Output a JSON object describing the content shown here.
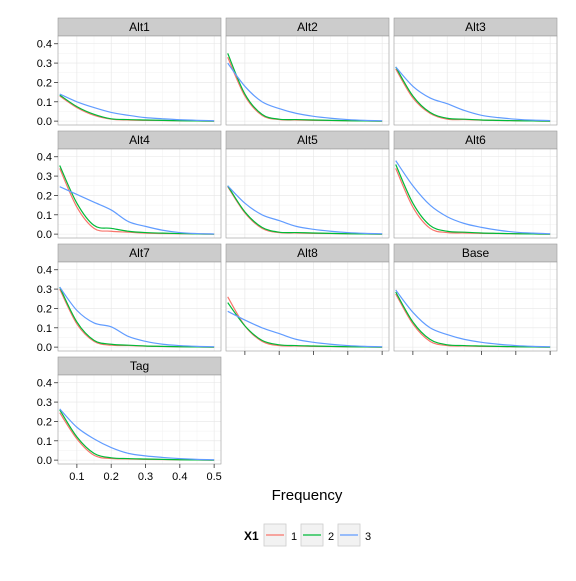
{
  "chart_data": {
    "type": "line",
    "xlabel": "Frequency",
    "ylabel": "",
    "x_ticks": [
      0.1,
      0.2,
      0.3,
      0.4,
      0.5
    ],
    "y_ticks": [
      0.0,
      0.1,
      0.2,
      0.3,
      0.4
    ],
    "x_tick_labels": [
      "0.1",
      "0.2",
      "0.3",
      "0.4",
      "0.5"
    ],
    "y_tick_labels": [
      "0.0",
      "0.1",
      "0.2",
      "0.3",
      "0.4"
    ],
    "xlim": [
      0.045,
      0.52
    ],
    "ylim": [
      -0.02,
      0.44
    ],
    "grid": true,
    "legend": {
      "title": "X1",
      "position": "bottom",
      "entries": [
        {
          "label": "1",
          "color": "#F8766D"
        },
        {
          "label": "2",
          "color": "#00BA38"
        },
        {
          "label": "3",
          "color": "#619CFF"
        }
      ]
    },
    "x": [
      0.05,
      0.1,
      0.15,
      0.2,
      0.25,
      0.3,
      0.35,
      0.4,
      0.45,
      0.5
    ],
    "panels": [
      {
        "title": "Alt1",
        "series": [
          {
            "name": "1",
            "values": [
              0.13,
              0.07,
              0.03,
              0.01,
              0.006,
              0.004,
              0.003,
              0.002,
              0.001,
              0.0
            ]
          },
          {
            "name": "2",
            "values": [
              0.135,
              0.075,
              0.035,
              0.012,
              0.008,
              0.006,
              0.004,
              0.002,
              0.001,
              0.0
            ]
          },
          {
            "name": "3",
            "values": [
              0.14,
              0.1,
              0.07,
              0.045,
              0.03,
              0.018,
              0.012,
              0.007,
              0.004,
              0.002
            ]
          }
        ]
      },
      {
        "title": "Alt2",
        "series": [
          {
            "name": "1",
            "values": [
              0.33,
              0.13,
              0.03,
              0.008,
              0.006,
              0.004,
              0.003,
              0.002,
              0.001,
              0.0
            ]
          },
          {
            "name": "2",
            "values": [
              0.35,
              0.14,
              0.035,
              0.01,
              0.008,
              0.006,
              0.004,
              0.002,
              0.001,
              0.0
            ]
          },
          {
            "name": "3",
            "values": [
              0.3,
              0.18,
              0.1,
              0.065,
              0.04,
              0.025,
              0.015,
              0.008,
              0.004,
              0.002
            ]
          }
        ]
      },
      {
        "title": "Alt3",
        "series": [
          {
            "name": "1",
            "values": [
              0.27,
              0.12,
              0.04,
              0.01,
              0.008,
              0.005,
              0.003,
              0.002,
              0.001,
              0.0
            ]
          },
          {
            "name": "2",
            "values": [
              0.28,
              0.13,
              0.045,
              0.015,
              0.01,
              0.006,
              0.004,
              0.002,
              0.001,
              0.0
            ]
          },
          {
            "name": "3",
            "values": [
              0.28,
              0.18,
              0.12,
              0.09,
              0.055,
              0.03,
              0.018,
              0.01,
              0.005,
              0.003
            ]
          }
        ]
      },
      {
        "title": "Alt4",
        "series": [
          {
            "name": "1",
            "values": [
              0.34,
              0.14,
              0.03,
              0.015,
              0.01,
              0.005,
              0.003,
              0.002,
              0.001,
              0.0
            ]
          },
          {
            "name": "2",
            "values": [
              0.355,
              0.16,
              0.045,
              0.03,
              0.015,
              0.008,
              0.005,
              0.003,
              0.001,
              0.0
            ]
          },
          {
            "name": "3",
            "values": [
              0.245,
              0.205,
              0.165,
              0.125,
              0.065,
              0.04,
              0.02,
              0.008,
              0.003,
              0.001
            ]
          }
        ]
      },
      {
        "title": "Alt5",
        "series": [
          {
            "name": "1",
            "values": [
              0.245,
              0.11,
              0.03,
              0.008,
              0.006,
              0.004,
              0.003,
              0.002,
              0.001,
              0.0
            ]
          },
          {
            "name": "2",
            "values": [
              0.25,
              0.115,
              0.035,
              0.01,
              0.008,
              0.006,
              0.004,
              0.002,
              0.001,
              0.0
            ]
          },
          {
            "name": "3",
            "values": [
              0.25,
              0.16,
              0.1,
              0.07,
              0.04,
              0.025,
              0.015,
              0.008,
              0.004,
              0.002
            ]
          }
        ]
      },
      {
        "title": "Alt6",
        "series": [
          {
            "name": "1",
            "values": [
              0.34,
              0.14,
              0.03,
              0.008,
              0.006,
              0.004,
              0.003,
              0.002,
              0.001,
              0.0
            ]
          },
          {
            "name": "2",
            "values": [
              0.36,
              0.16,
              0.045,
              0.015,
              0.01,
              0.006,
              0.004,
              0.002,
              0.001,
              0.0
            ]
          },
          {
            "name": "3",
            "values": [
              0.38,
              0.25,
              0.15,
              0.09,
              0.055,
              0.035,
              0.02,
              0.01,
              0.005,
              0.002
            ]
          }
        ]
      },
      {
        "title": "Alt7",
        "series": [
          {
            "name": "1",
            "values": [
              0.3,
              0.12,
              0.03,
              0.01,
              0.008,
              0.005,
              0.003,
              0.002,
              0.001,
              0.0
            ]
          },
          {
            "name": "2",
            "values": [
              0.31,
              0.13,
              0.035,
              0.015,
              0.01,
              0.006,
              0.004,
              0.002,
              0.001,
              0.0
            ]
          },
          {
            "name": "3",
            "values": [
              0.31,
              0.19,
              0.125,
              0.105,
              0.055,
              0.03,
              0.015,
              0.008,
              0.004,
              0.002
            ]
          }
        ]
      },
      {
        "title": "Alt8",
        "series": [
          {
            "name": "1",
            "values": [
              0.26,
              0.11,
              0.03,
              0.008,
              0.006,
              0.004,
              0.003,
              0.002,
              0.001,
              0.0
            ]
          },
          {
            "name": "2",
            "values": [
              0.23,
              0.11,
              0.035,
              0.012,
              0.008,
              0.006,
              0.004,
              0.002,
              0.001,
              0.0
            ]
          },
          {
            "name": "3",
            "values": [
              0.185,
              0.14,
              0.1,
              0.07,
              0.04,
              0.025,
              0.015,
              0.008,
              0.004,
              0.002
            ]
          }
        ]
      },
      {
        "title": "Base",
        "series": [
          {
            "name": "1",
            "values": [
              0.275,
              0.12,
              0.03,
              0.008,
              0.006,
              0.004,
              0.003,
              0.002,
              0.001,
              0.0
            ]
          },
          {
            "name": "2",
            "values": [
              0.285,
              0.13,
              0.04,
              0.012,
              0.008,
              0.006,
              0.004,
              0.002,
              0.001,
              0.0
            ]
          },
          {
            "name": "3",
            "values": [
              0.295,
              0.18,
              0.1,
              0.065,
              0.04,
              0.025,
              0.015,
              0.008,
              0.004,
              0.002
            ]
          }
        ]
      },
      {
        "title": "Tag",
        "series": [
          {
            "name": "1",
            "values": [
              0.245,
              0.11,
              0.025,
              0.008,
              0.006,
              0.004,
              0.003,
              0.002,
              0.001,
              0.0
            ]
          },
          {
            "name": "2",
            "values": [
              0.26,
              0.12,
              0.035,
              0.012,
              0.008,
              0.006,
              0.004,
              0.002,
              0.001,
              0.0
            ]
          },
          {
            "name": "3",
            "values": [
              0.265,
              0.17,
              0.11,
              0.065,
              0.035,
              0.022,
              0.014,
              0.008,
              0.004,
              0.002
            ]
          }
        ]
      }
    ]
  }
}
